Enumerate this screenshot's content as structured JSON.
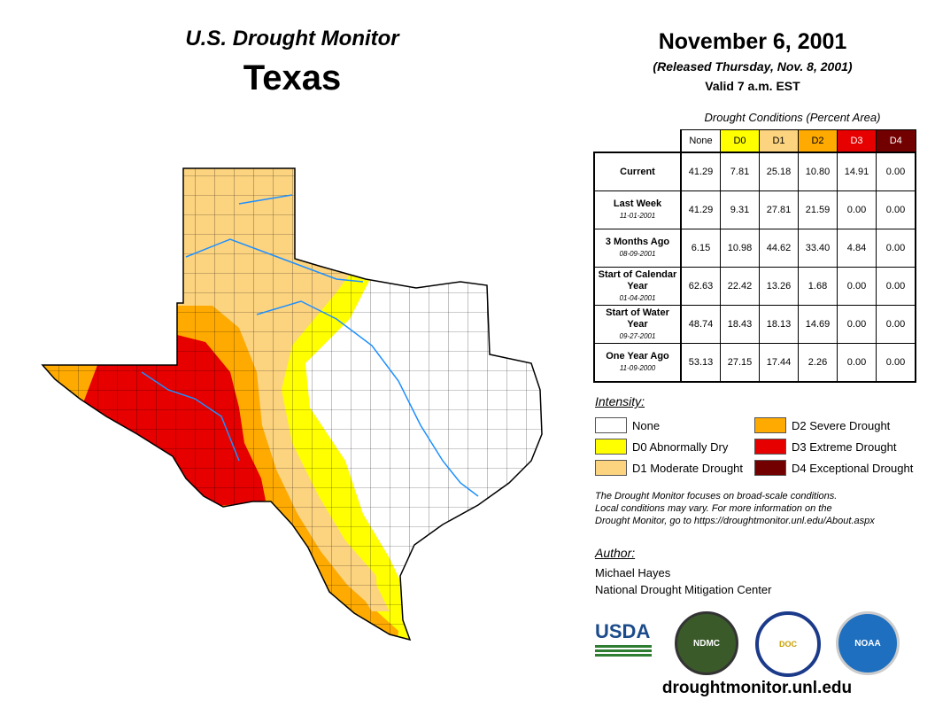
{
  "header": {
    "product": "U.S. Drought Monitor",
    "region": "Texas",
    "date": "November 6, 2001",
    "released": "(Released Thursday, Nov. 8, 2001)",
    "valid": "Valid 7 a.m. EST"
  },
  "table": {
    "caption": "Drought Conditions (Percent Area)",
    "columns": [
      {
        "label": "None",
        "color": "#ffffff"
      },
      {
        "label": "D0",
        "color": "#ffff00"
      },
      {
        "label": "D1",
        "color": "#fcd37f"
      },
      {
        "label": "D2",
        "color": "#ffaa00"
      },
      {
        "label": "D3",
        "color": "#e60000"
      },
      {
        "label": "D4",
        "color": "#730000"
      }
    ],
    "rows": [
      {
        "label": "Current",
        "date": "",
        "values": [
          "41.29",
          "7.81",
          "25.18",
          "10.80",
          "14.91",
          "0.00"
        ]
      },
      {
        "label": "Last Week",
        "date": "11-01-2001",
        "values": [
          "41.29",
          "9.31",
          "27.81",
          "21.59",
          "0.00",
          "0.00"
        ]
      },
      {
        "label": "3 Months Ago",
        "date": "08-09-2001",
        "values": [
          "6.15",
          "10.98",
          "44.62",
          "33.40",
          "4.84",
          "0.00"
        ]
      },
      {
        "label": "Start of Calendar Year",
        "date": "01-04-2001",
        "values": [
          "62.63",
          "22.42",
          "13.26",
          "1.68",
          "0.00",
          "0.00"
        ]
      },
      {
        "label": "Start of Water Year",
        "date": "09-27-2001",
        "values": [
          "48.74",
          "18.43",
          "18.13",
          "14.69",
          "0.00",
          "0.00"
        ]
      },
      {
        "label": "One Year Ago",
        "date": "11-09-2000",
        "values": [
          "53.13",
          "27.15",
          "17.44",
          "2.26",
          "0.00",
          "0.00"
        ]
      }
    ]
  },
  "legend": {
    "title": "Intensity:",
    "items": [
      {
        "label": "None",
        "color": "#ffffff"
      },
      {
        "label": "D0 Abnormally Dry",
        "color": "#ffff00"
      },
      {
        "label": "D1 Moderate Drought",
        "color": "#fcd37f"
      },
      {
        "label": "D2 Severe Drought",
        "color": "#ffaa00"
      },
      {
        "label": "D3 Extreme Drought",
        "color": "#e60000"
      },
      {
        "label": "D4 Exceptional Drought",
        "color": "#730000"
      }
    ]
  },
  "note": [
    "The Drought Monitor focuses on broad-scale conditions.",
    "Local conditions may vary. For more information on the",
    "Drought Monitor, go to https://droughtmonitor.unl.edu/About.aspx"
  ],
  "author": {
    "title": "Author:",
    "name": "Michael Hayes",
    "org": "National Drought Mitigation Center"
  },
  "logos": {
    "usda": "USDA",
    "ndmc": "NDMC",
    "doc": "DOC",
    "noaa": "NOAA"
  },
  "url": "droughtmonitor.unl.edu"
}
